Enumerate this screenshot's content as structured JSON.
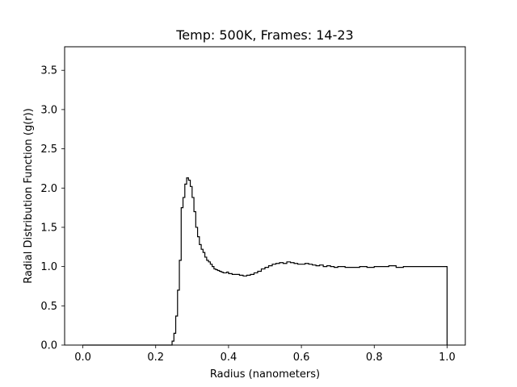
{
  "chart_data": {
    "type": "line",
    "style": "step",
    "title": "Temp: 500K, Frames: 14-23",
    "xlabel": "Radius (nanometers)",
    "ylabel": "Radial Distribution Function (g(r))",
    "xlim": [
      -0.05,
      1.05
    ],
    "ylim": [
      0.0,
      3.8
    ],
    "xticks": [
      0.0,
      0.2,
      0.4,
      0.6,
      0.8,
      1.0
    ],
    "xtick_labels": [
      "0.0",
      "0.2",
      "0.4",
      "0.6",
      "0.8",
      "1.0"
    ],
    "yticks": [
      0.0,
      0.5,
      1.0,
      1.5,
      2.0,
      2.5,
      3.0,
      3.5
    ],
    "ytick_labels": [
      "0.0",
      "0.5",
      "1.0",
      "1.5",
      "2.0",
      "2.5",
      "3.0",
      "3.5"
    ],
    "grid": false,
    "line_color": "#000000",
    "series": [
      {
        "x": [
          0.0,
          0.24,
          0.245,
          0.25,
          0.255,
          0.26,
          0.265,
          0.27,
          0.275,
          0.28,
          0.285,
          0.29,
          0.295,
          0.3,
          0.305,
          0.31,
          0.315,
          0.32,
          0.325,
          0.33,
          0.335,
          0.34,
          0.345,
          0.35,
          0.355,
          0.36,
          0.365,
          0.37,
          0.375,
          0.38,
          0.385,
          0.39,
          0.395,
          0.4,
          0.41,
          0.42,
          0.43,
          0.44,
          0.45,
          0.46,
          0.47,
          0.48,
          0.49,
          0.5,
          0.51,
          0.52,
          0.53,
          0.54,
          0.55,
          0.56,
          0.57,
          0.58,
          0.59,
          0.6,
          0.61,
          0.62,
          0.63,
          0.64,
          0.65,
          0.66,
          0.67,
          0.68,
          0.69,
          0.7,
          0.72,
          0.74,
          0.76,
          0.78,
          0.8,
          0.82,
          0.84,
          0.86,
          0.88,
          0.9,
          0.92,
          0.94,
          0.96,
          0.98,
          1.0
        ],
        "y": [
          0.0,
          0.0,
          0.05,
          0.15,
          0.37,
          0.7,
          1.08,
          1.75,
          1.88,
          2.05,
          2.13,
          2.1,
          2.02,
          1.88,
          1.7,
          1.5,
          1.38,
          1.28,
          1.22,
          1.18,
          1.12,
          1.08,
          1.06,
          1.03,
          1.0,
          0.97,
          0.96,
          0.95,
          0.94,
          0.93,
          0.92,
          0.92,
          0.93,
          0.91,
          0.9,
          0.9,
          0.89,
          0.88,
          0.89,
          0.9,
          0.92,
          0.94,
          0.97,
          0.99,
          1.01,
          1.03,
          1.04,
          1.05,
          1.04,
          1.06,
          1.05,
          1.04,
          1.03,
          1.03,
          1.04,
          1.03,
          1.02,
          1.01,
          1.02,
          1.0,
          1.01,
          1.0,
          0.99,
          1.0,
          0.99,
          0.99,
          1.0,
          0.99,
          1.0,
          1.0,
          1.01,
          0.99,
          1.0,
          1.0,
          1.0,
          1.0,
          1.0,
          1.0,
          1.0
        ]
      }
    ]
  }
}
